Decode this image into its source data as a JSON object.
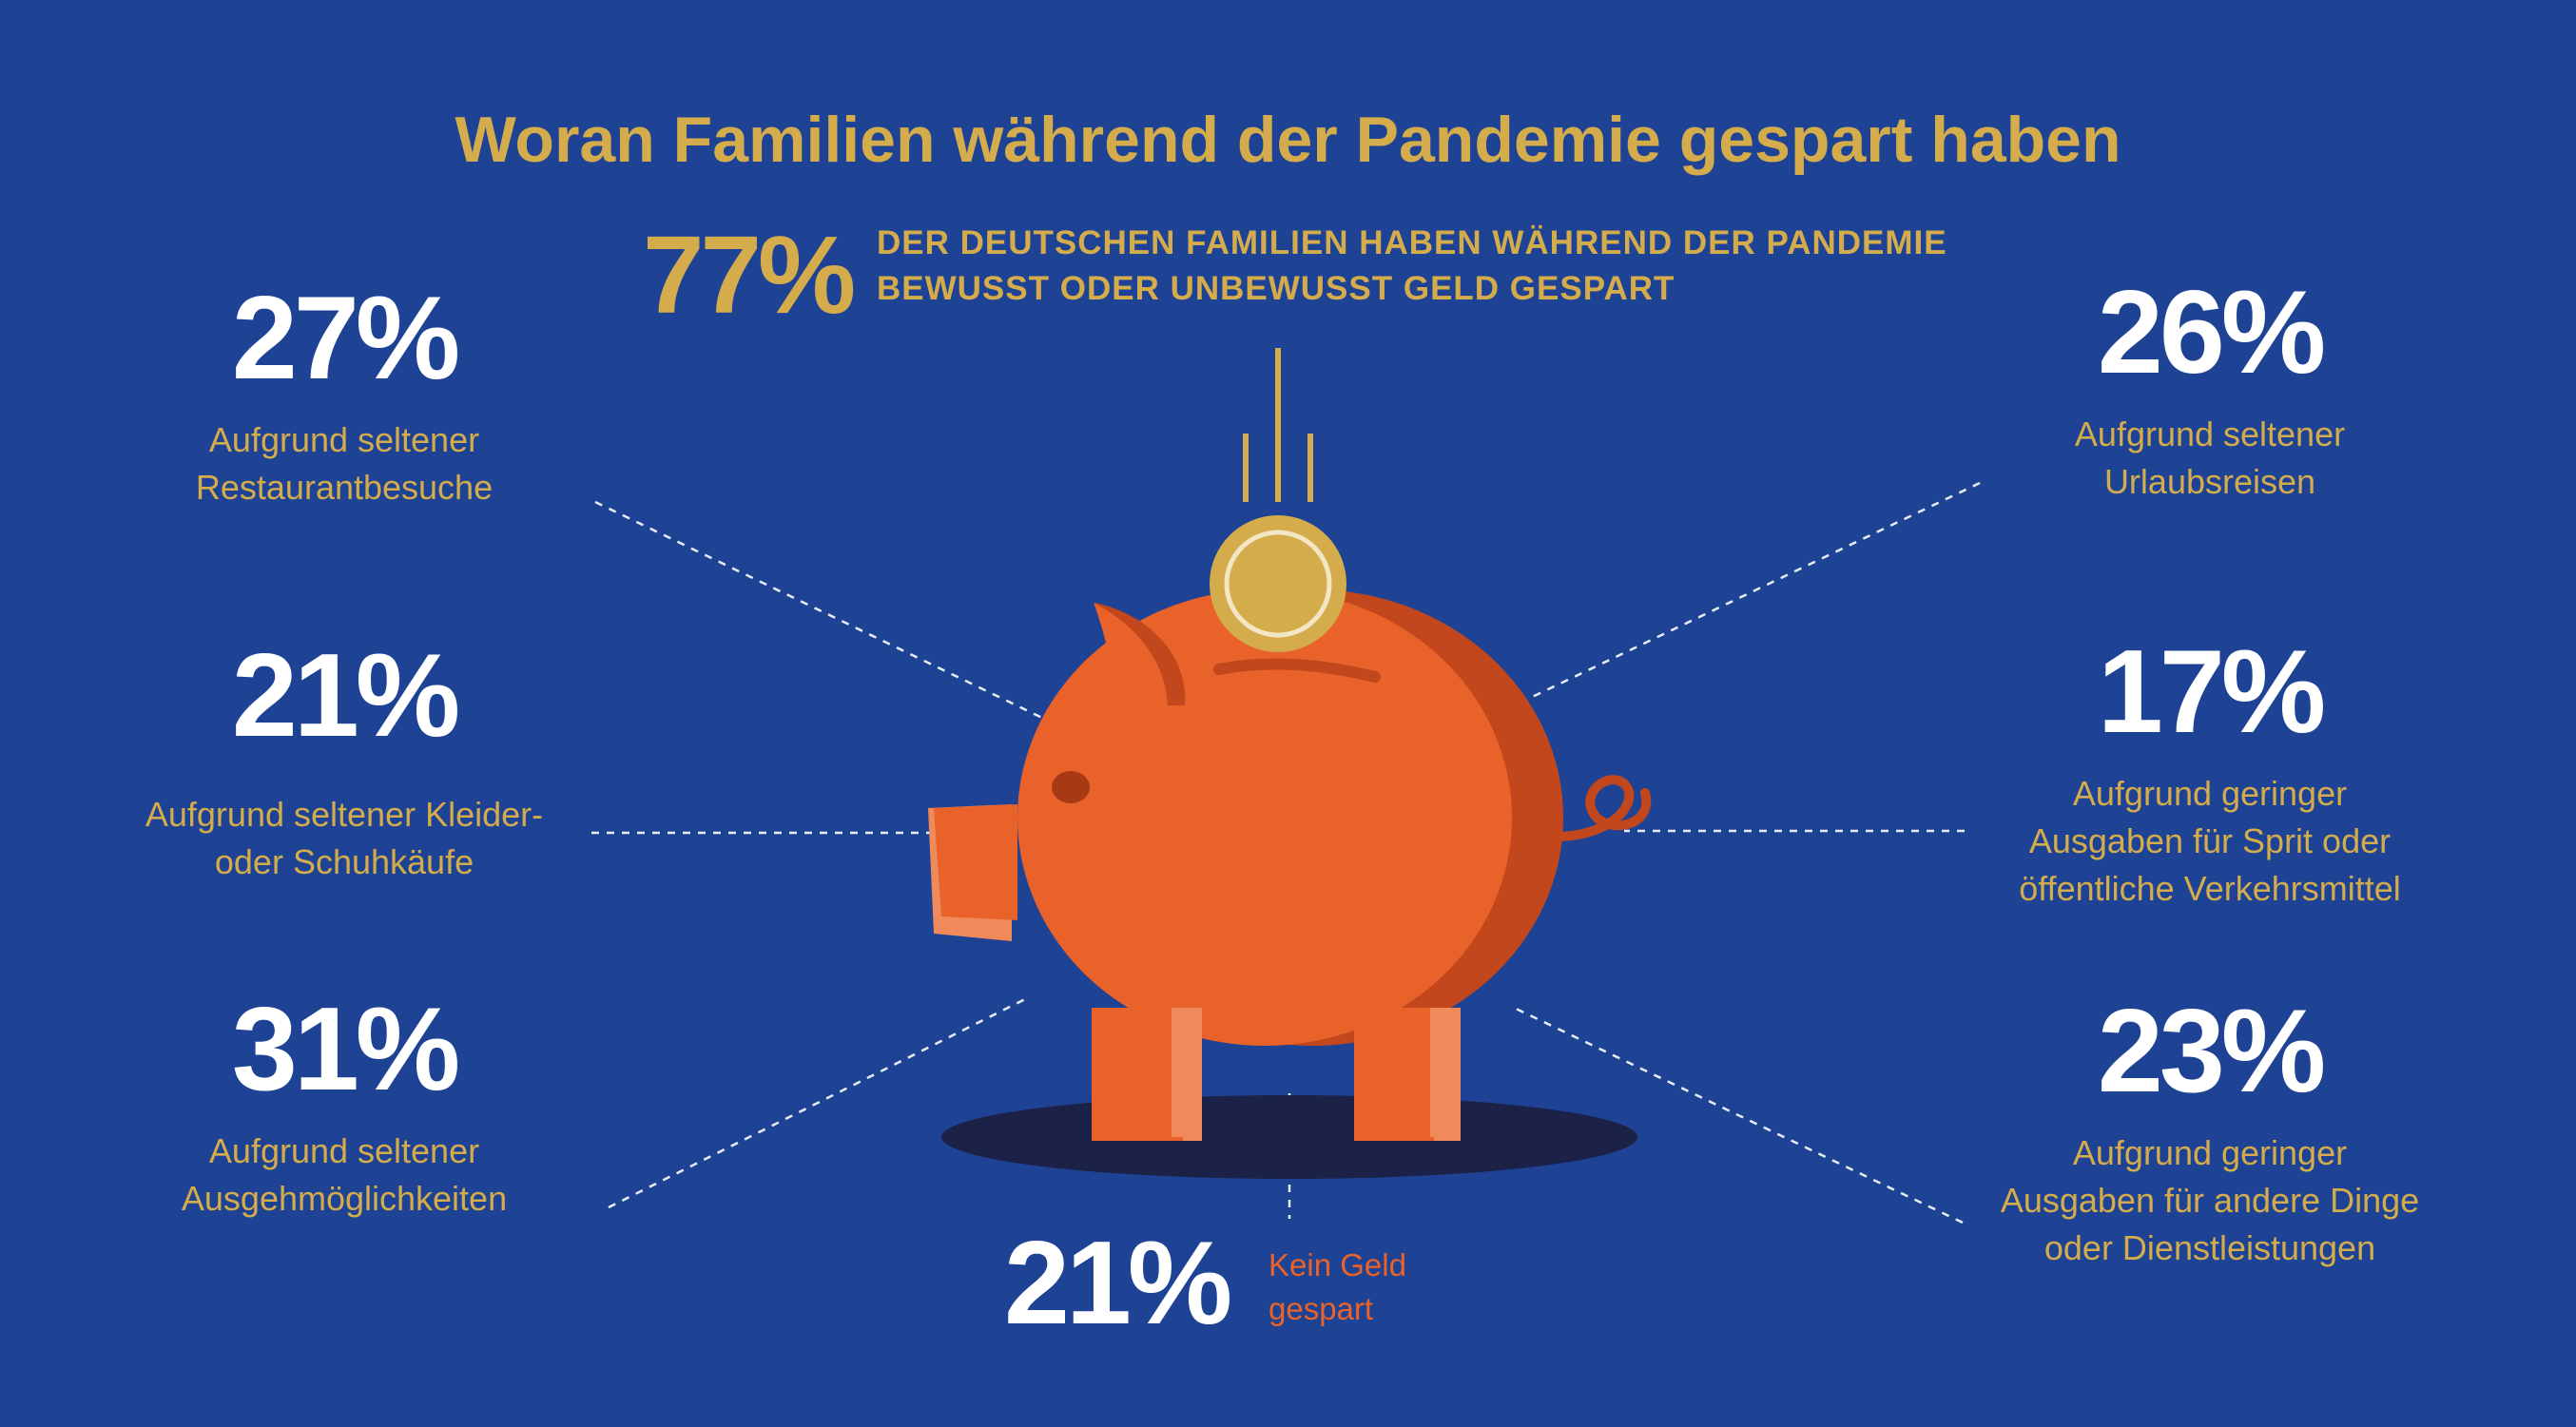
{
  "title": "Woran Familien während der Pandemie gespart haben",
  "headline": {
    "value": "77%",
    "text_line1": "DER DEUTSCHEN FAMILIEN HABEN WÄHREND DER PANDEMIE",
    "text_line2": "BEWUSST ODER UNBEWUSST GELD GESPART"
  },
  "stats_left": [
    {
      "value": "27%",
      "label_line1": "Aufgrund seltener",
      "label_line2": "Restaurantbesuche"
    },
    {
      "value": "21%",
      "label_line1": "Aufgrund seltener Kleider-",
      "label_line2": "oder Schuhkäufe"
    },
    {
      "value": "31%",
      "label_line1": "Aufgrund seltener",
      "label_line2": "Ausgehmöglichkeiten"
    }
  ],
  "stats_right": [
    {
      "value": "26%",
      "label_line1": "Aufgrund seltener",
      "label_line2": "Urlaubsreisen"
    },
    {
      "value": "17%",
      "label_line1": "Aufgrund geringer",
      "label_line2": "Ausgaben für Sprit oder",
      "label_line3": "öffentliche Verkehrsmittel"
    },
    {
      "value": "23%",
      "label_line1": "Aufgrund geringer",
      "label_line2": "Ausgaben für andere Dinge",
      "label_line3": "oder Dienstleistungen"
    }
  ],
  "no_savings": {
    "value": "21%",
    "label_line1": "Kein Geld",
    "label_line2": "gespart"
  },
  "colors": {
    "background": "#1e4395",
    "gold": "#d4ac4c",
    "white": "#ffffff",
    "orange": "#e8622a",
    "orange_dark": "#c2471c",
    "shadow": "#1c2148"
  },
  "illustration": [
    "piggy-bank-icon",
    "coin-icon"
  ]
}
